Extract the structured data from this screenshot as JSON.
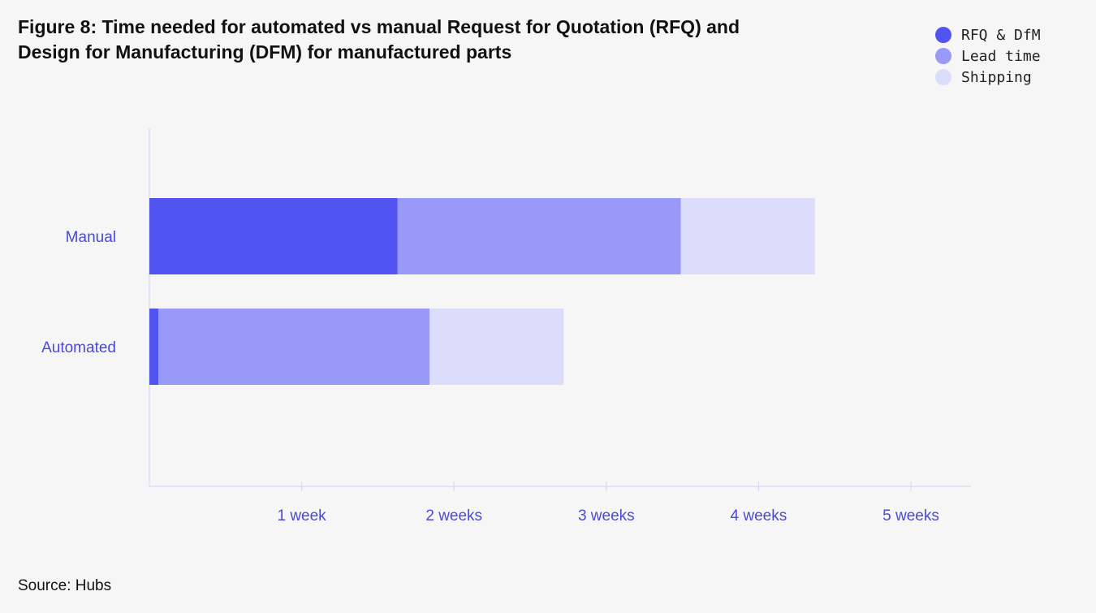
{
  "title_lines": [
    "Figure 8: Time needed for automated vs manual Request for Quotation (RFQ) and",
    "Design for Manufacturing (DFM) for manufactured parts"
  ],
  "source": "Source: Hubs",
  "colors": {
    "rfq": "#5254f2",
    "lead": "#9999f7",
    "shipping": "#dcdcfb",
    "axis": "#d8d8f0",
    "label": "#4a4ad6"
  },
  "chart_data": {
    "type": "bar",
    "orientation": "horizontal",
    "stacked": true,
    "categories": [
      "Manual",
      "Automated"
    ],
    "series": [
      {
        "name": "RFQ & DfM",
        "values": [
          1.63,
          0.06
        ]
      },
      {
        "name": "Lead time",
        "values": [
          1.86,
          1.78
        ]
      },
      {
        "name": "Shipping",
        "values": [
          0.88,
          0.88
        ]
      }
    ],
    "x_ticks": [
      {
        "value": 1,
        "label": "1 week"
      },
      {
        "value": 2,
        "label": "2 weeks"
      },
      {
        "value": 3,
        "label": "3 weeks"
      },
      {
        "value": 4,
        "label": "4 weeks"
      },
      {
        "value": 5,
        "label": "5 weeks"
      }
    ],
    "xlim": [
      0,
      5.4
    ],
    "legend_position": "top-right",
    "grid": false
  }
}
